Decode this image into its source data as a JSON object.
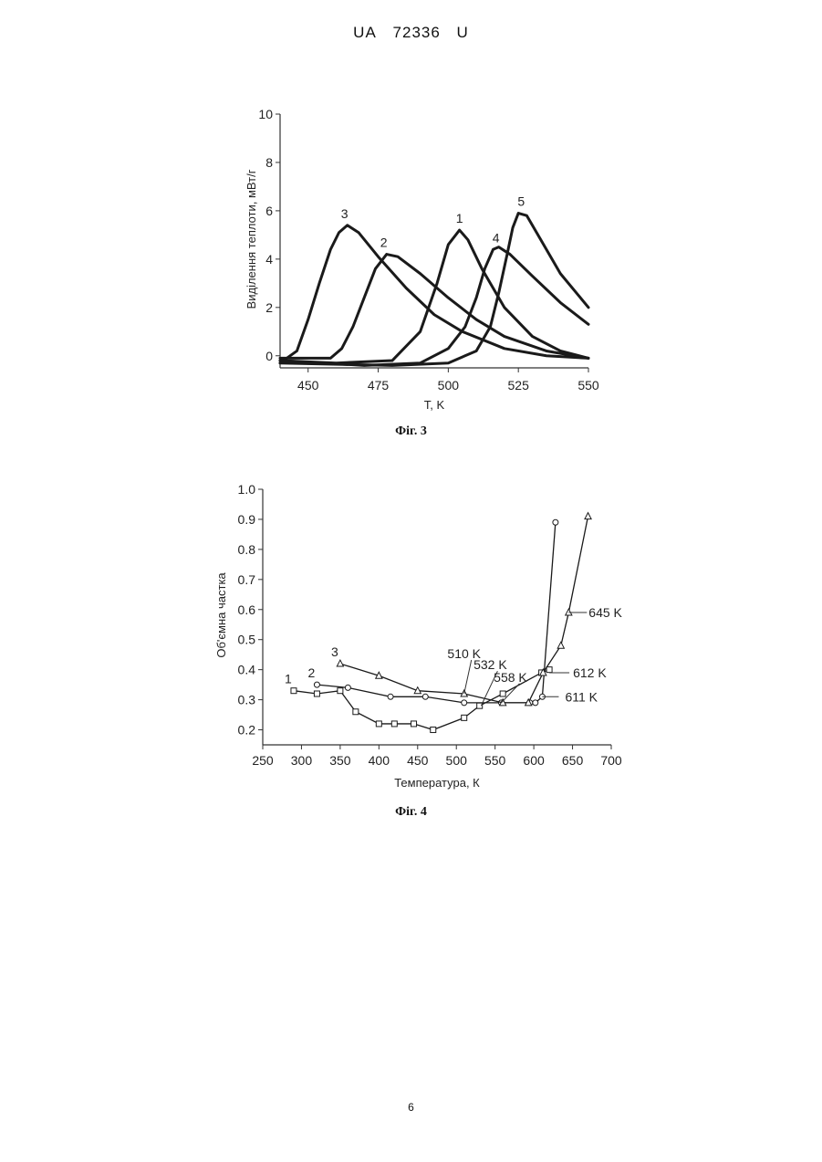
{
  "header": {
    "office": "UA",
    "number": "72336",
    "kind": "U"
  },
  "figures": [
    {
      "caption": "Фіг. 3"
    },
    {
      "caption": "Фіг. 4"
    }
  ],
  "page_number": "6",
  "colors": {
    "ink": "#1a1a1a",
    "grey_ink": "#7a7a7a"
  },
  "chart_data": [
    {
      "type": "line",
      "xlabel": "T, K",
      "ylabel": "Виділення теплоти, мВт/г",
      "xlim": [
        440,
        550
      ],
      "ylim": [
        -0.5,
        10
      ],
      "xticks": [
        450,
        475,
        500,
        525,
        550
      ],
      "yticks": [
        0,
        2,
        4,
        6,
        8,
        10
      ],
      "grid": false,
      "series": [
        {
          "name": "1",
          "x": [
            440,
            460,
            480,
            490,
            496,
            500,
            504,
            507,
            512,
            520,
            530,
            540,
            550
          ],
          "y": [
            -0.2,
            -0.3,
            -0.2,
            1.0,
            3.0,
            4.6,
            5.2,
            4.8,
            3.6,
            2.0,
            0.8,
            0.2,
            -0.1
          ]
        },
        {
          "name": "2",
          "x": [
            440,
            458,
            462,
            466,
            470,
            474,
            478,
            482,
            490,
            500,
            510,
            520,
            535,
            550
          ],
          "y": [
            -0.1,
            -0.1,
            0.3,
            1.2,
            2.4,
            3.6,
            4.2,
            4.1,
            3.4,
            2.4,
            1.5,
            0.8,
            0.2,
            -0.1
          ]
        },
        {
          "name": "3",
          "x": [
            440,
            446,
            450,
            454,
            458,
            461,
            464,
            468,
            475,
            485,
            495,
            505,
            520,
            535,
            550
          ],
          "y": [
            -0.3,
            0.2,
            1.5,
            3.0,
            4.4,
            5.1,
            5.4,
            5.1,
            4.1,
            2.8,
            1.7,
            1.0,
            0.3,
            0.0,
            -0.1
          ]
        },
        {
          "name": "4",
          "x": [
            440,
            470,
            490,
            500,
            506,
            510,
            513,
            516,
            518,
            522,
            530,
            540,
            550
          ],
          "y": [
            -0.2,
            -0.4,
            -0.3,
            0.3,
            1.2,
            2.4,
            3.6,
            4.4,
            4.5,
            4.2,
            3.3,
            2.2,
            1.3
          ]
        },
        {
          "name": "5",
          "x": [
            440,
            480,
            500,
            510,
            515,
            518,
            521,
            523,
            525,
            528,
            532,
            540,
            550
          ],
          "y": [
            -0.3,
            -0.4,
            -0.3,
            0.2,
            1.2,
            2.6,
            4.2,
            5.3,
            5.9,
            5.8,
            5.0,
            3.4,
            2.0
          ]
        }
      ],
      "annotations": [
        {
          "text": "1",
          "x": 504,
          "y": 5.5
        },
        {
          "text": "2",
          "x": 477,
          "y": 4.5
        },
        {
          "text": "3",
          "x": 463,
          "y": 5.7
        },
        {
          "text": "4",
          "x": 517,
          "y": 4.7
        },
        {
          "text": "5",
          "x": 526,
          "y": 6.2
        }
      ]
    },
    {
      "type": "line",
      "xlabel": "Температура, К",
      "ylabel": "Об'ємна частка",
      "xlim": [
        250,
        700
      ],
      "ylim": [
        0.15,
        1.0
      ],
      "xticks": [
        250,
        300,
        350,
        400,
        450,
        500,
        550,
        600,
        650,
        700
      ],
      "yticks": [
        0.2,
        0.3,
        0.4,
        0.5,
        0.6,
        0.7,
        0.8,
        0.9,
        1.0
      ],
      "grid": false,
      "series": [
        {
          "name": "1",
          "marker": "square",
          "x": [
            290,
            320,
            350,
            370,
            400,
            420,
            445,
            470,
            510,
            530,
            560,
            610,
            620
          ],
          "y": [
            0.33,
            0.32,
            0.33,
            0.26,
            0.22,
            0.22,
            0.22,
            0.2,
            0.24,
            0.28,
            0.32,
            0.39,
            0.4
          ]
        },
        {
          "name": "2",
          "marker": "circle",
          "x": [
            320,
            360,
            415,
            460,
            510,
            558,
            595,
            602,
            611,
            628
          ],
          "y": [
            0.35,
            0.34,
            0.31,
            0.31,
            0.29,
            0.29,
            0.29,
            0.29,
            0.31,
            0.89
          ]
        },
        {
          "name": "3",
          "marker": "triangle",
          "x": [
            350,
            400,
            450,
            510,
            560,
            593,
            612,
            635,
            645,
            670
          ],
          "y": [
            0.42,
            0.38,
            0.33,
            0.32,
            0.29,
            0.29,
            0.39,
            0.48,
            0.59,
            0.91
          ]
        }
      ],
      "labels": [
        {
          "text": "1",
          "x": 290,
          "y": 0.33
        },
        {
          "text": "2",
          "x": 320,
          "y": 0.35
        },
        {
          "text": "3",
          "x": 350,
          "y": 0.42
        }
      ],
      "annotations": [
        {
          "text": "510 K",
          "x": 510,
          "y": 0.32
        },
        {
          "text": "532 K",
          "x": 532,
          "y": 0.28
        },
        {
          "text": "558 K",
          "x": 558,
          "y": 0.29
        },
        {
          "text": "612 K",
          "x": 620,
          "y": 0.39
        },
        {
          "text": "611 K",
          "x": 611,
          "y": 0.31
        },
        {
          "text": "645 K",
          "x": 645,
          "y": 0.59
        }
      ]
    }
  ]
}
